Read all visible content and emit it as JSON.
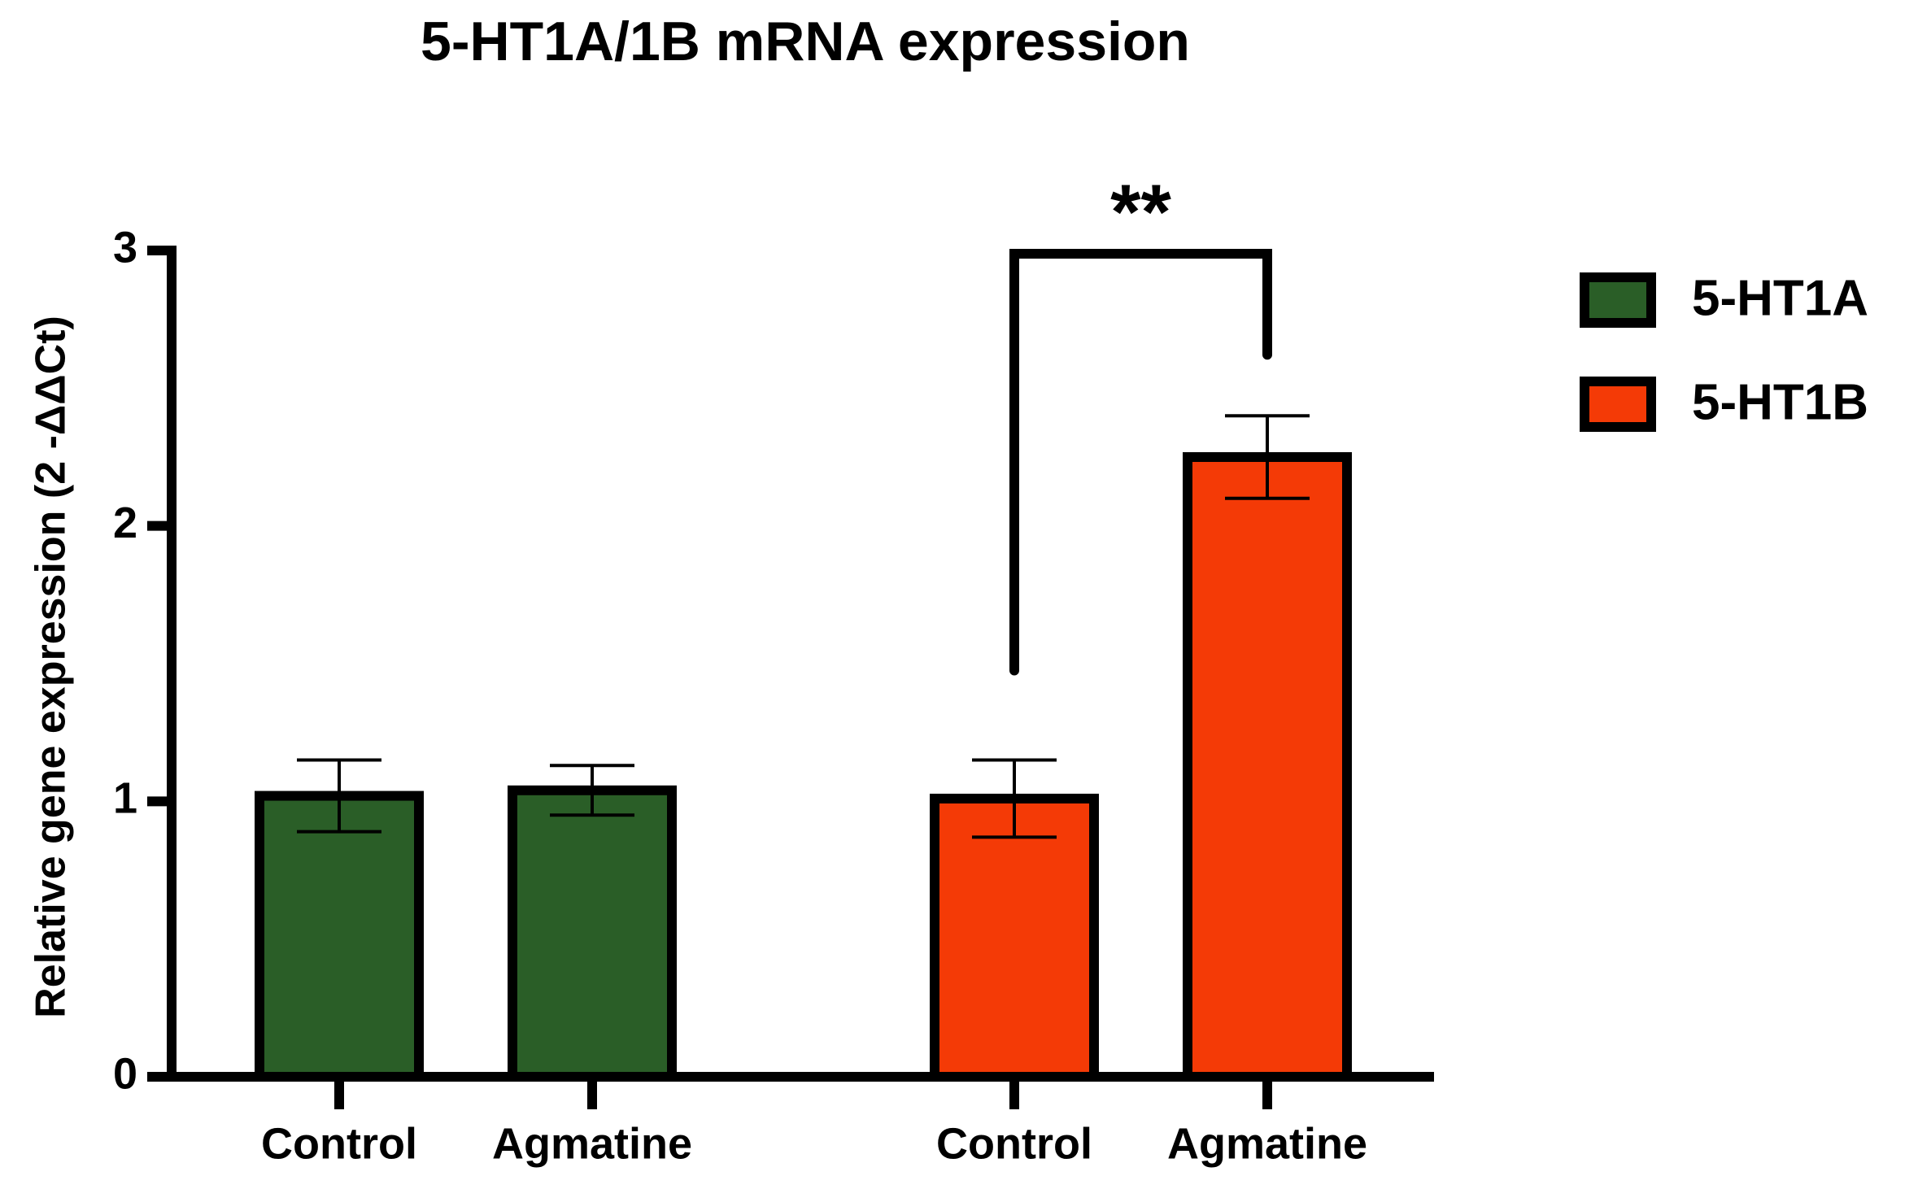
{
  "chart_data": {
    "type": "bar",
    "title": "5-HT1A/1B mRNA expression",
    "y_label": "Relative gene expression (2 -ΔΔCt)",
    "categories": [
      "Control",
      "Agmatine"
    ],
    "series": [
      {
        "name": "5-HT1A",
        "color": "#2a5e27",
        "values": [
          1.02,
          1.04
        ],
        "errors": [
          0.13,
          0.09
        ]
      },
      {
        "name": "5-HT1B",
        "color": "#f43a06",
        "values": [
          1.01,
          2.25
        ],
        "errors": [
          0.14,
          0.15
        ]
      }
    ],
    "ylim": [
      0,
      3
    ],
    "yticks": [
      0,
      1,
      2,
      3
    ],
    "annotation": "**",
    "legend": "right"
  }
}
